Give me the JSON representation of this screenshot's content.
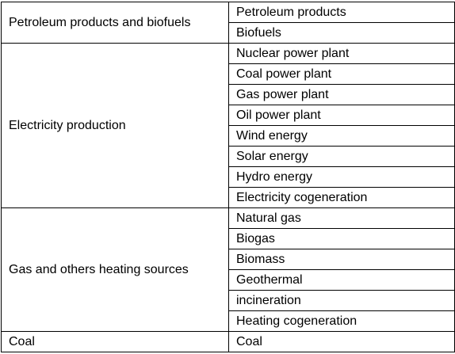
{
  "table": {
    "groups": [
      {
        "category": "Petroleum products and biofuels",
        "items": [
          "Petroleum products",
          "Biofuels"
        ]
      },
      {
        "category": "Electricity production",
        "items": [
          "Nuclear power plant",
          "Coal power plant",
          "Gas power plant",
          "Oil power plant",
          "Wind energy",
          "Solar energy",
          "Hydro energy",
          "Electricity cogeneration"
        ]
      },
      {
        "category": "Gas and others heating sources",
        "items": [
          "Natural gas",
          "Biogas",
          "Biomass",
          "Geothermal",
          "incineration",
          "Heating cogeneration"
        ]
      },
      {
        "category": "Coal",
        "items": [
          "Coal"
        ]
      }
    ]
  }
}
